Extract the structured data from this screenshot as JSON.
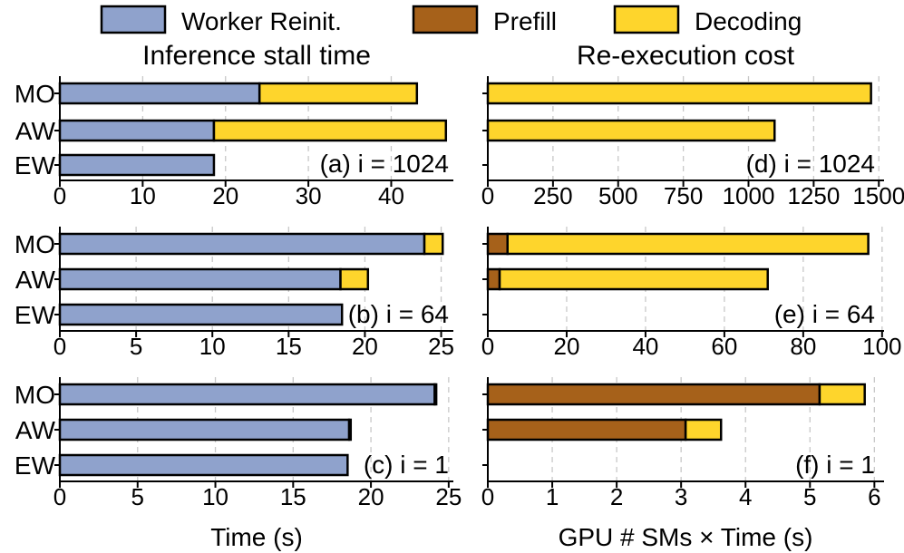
{
  "legend": {
    "items": [
      {
        "label": "Worker Reinit.",
        "color": "#8fa2cc"
      },
      {
        "label": "Prefill",
        "color": "#a6611a"
      },
      {
        "label": "Decoding",
        "color": "#fed52c"
      }
    ]
  },
  "columns": {
    "left_title": "Inference stall time",
    "right_title": "Re-execution cost",
    "left_xlabel": "Time (s)",
    "right_xlabel": "GPU # SMs × Time (s)"
  },
  "chart_data": [
    {
      "type": "bar",
      "orientation": "horizontal",
      "stacked": true,
      "panel": "(a) i = 1024",
      "categories": [
        "MO",
        "AW",
        "EW"
      ],
      "series": [
        {
          "name": "Worker Reinit.",
          "values": [
            24.1,
            18.6,
            18.6
          ]
        },
        {
          "name": "Prefill",
          "values": [
            0,
            0,
            0
          ]
        },
        {
          "name": "Decoding",
          "values": [
            19.0,
            28.0,
            0
          ]
        }
      ],
      "xlim": [
        0,
        47.5
      ],
      "xticks": [
        0,
        10,
        20,
        30,
        40
      ],
      "xlabel": "Time (s)",
      "grid": true
    },
    {
      "type": "bar",
      "orientation": "horizontal",
      "stacked": true,
      "panel": "(b) i = 64",
      "categories": [
        "MO",
        "AW",
        "EW"
      ],
      "series": [
        {
          "name": "Worker Reinit.",
          "values": [
            23.9,
            18.4,
            18.5
          ]
        },
        {
          "name": "Prefill",
          "values": [
            0,
            0,
            0
          ]
        },
        {
          "name": "Decoding",
          "values": [
            1.2,
            1.8,
            0
          ]
        }
      ],
      "xlim": [
        0,
        25.8
      ],
      "xticks": [
        0,
        5,
        10,
        15,
        20,
        25
      ],
      "xlabel": "Time (s)",
      "grid": true
    },
    {
      "type": "bar",
      "orientation": "horizontal",
      "stacked": true,
      "panel": "(c) i = 1",
      "categories": [
        "MO",
        "AW",
        "EW"
      ],
      "series": [
        {
          "name": "Worker Reinit.",
          "values": [
            24.1,
            18.6,
            18.5
          ]
        },
        {
          "name": "Prefill",
          "values": [
            0,
            0,
            0
          ]
        },
        {
          "name": "Decoding",
          "values": [
            0.1,
            0.1,
            0
          ]
        }
      ],
      "xlim": [
        0,
        25.3
      ],
      "xticks": [
        0,
        5,
        10,
        15,
        20,
        25
      ],
      "xlabel": "Time (s)",
      "grid": true
    },
    {
      "type": "bar",
      "orientation": "horizontal",
      "stacked": true,
      "panel": "(d) i = 1024",
      "categories": [
        "MO",
        "AW",
        "EW"
      ],
      "series": [
        {
          "name": "Worker Reinit.",
          "values": [
            0,
            0,
            0
          ]
        },
        {
          "name": "Prefill",
          "values": [
            0,
            0,
            0
          ]
        },
        {
          "name": "Decoding",
          "values": [
            1470,
            1100,
            0
          ]
        }
      ],
      "xlim": [
        0,
        1520
      ],
      "xticks": [
        0,
        250,
        500,
        750,
        1000,
        1250,
        1500
      ],
      "xlabel": "GPU # SMs × Time (s)",
      "grid": true
    },
    {
      "type": "bar",
      "orientation": "horizontal",
      "stacked": true,
      "panel": "(e) i = 64",
      "categories": [
        "MO",
        "AW",
        "EW"
      ],
      "series": [
        {
          "name": "Worker Reinit.",
          "values": [
            0,
            0,
            0
          ]
        },
        {
          "name": "Prefill",
          "values": [
            5,
            3,
            0
          ]
        },
        {
          "name": "Decoding",
          "values": [
            91.5,
            68,
            0
          ]
        }
      ],
      "xlim": [
        0,
        100.5
      ],
      "xticks": [
        0,
        20,
        40,
        60,
        80,
        100
      ],
      "xlabel": "GPU # SMs × Time (s)",
      "grid": true
    },
    {
      "type": "bar",
      "orientation": "horizontal",
      "stacked": true,
      "panel": "(f) i = 1",
      "categories": [
        "MO",
        "AW",
        "EW"
      ],
      "series": [
        {
          "name": "Worker Reinit.",
          "values": [
            0,
            0,
            0
          ]
        },
        {
          "name": "Prefill",
          "values": [
            5.15,
            3.07,
            0
          ]
        },
        {
          "name": "Decoding",
          "values": [
            0.7,
            0.55,
            0
          ]
        }
      ],
      "xlim": [
        0,
        6.15
      ],
      "xticks": [
        0,
        1,
        2,
        3,
        4,
        5,
        6
      ],
      "xlabel": "GPU # SMs × Time (s)",
      "grid": true
    }
  ]
}
